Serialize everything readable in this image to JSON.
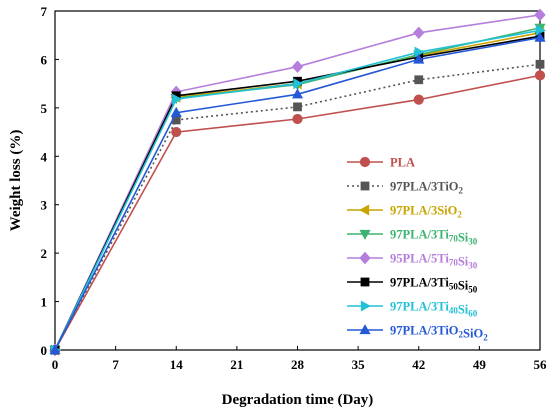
{
  "chart_data": {
    "type": "line",
    "xlabel": "Degradation time (Day)",
    "ylabel": "Weight loss (%)",
    "xlim": [
      0,
      56
    ],
    "ylim": [
      0,
      7
    ],
    "xticks": [
      0,
      7,
      14,
      21,
      28,
      35,
      42,
      49,
      56
    ],
    "yticks": [
      0,
      1,
      2,
      3,
      4,
      5,
      6,
      7
    ],
    "x": [
      0,
      14,
      28,
      42,
      56
    ],
    "legend_position": "bottom-right",
    "grid": false,
    "series": [
      {
        "name": "PLA",
        "label": [
          {
            "t": "PLA"
          }
        ],
        "color": "#c0504d",
        "marker": "circle",
        "dash": false,
        "values": [
          0,
          4.5,
          4.77,
          5.17,
          5.67
        ]
      },
      {
        "name": "97PLA/3TiO2",
        "label": [
          {
            "t": "97PLA/3TiO"
          },
          {
            "t": "2",
            "sub": true
          }
        ],
        "color": "#555555",
        "marker": "square",
        "dash": true,
        "values": [
          0,
          4.75,
          5.02,
          5.58,
          5.9
        ]
      },
      {
        "name": "97PLA/3SiO2",
        "label": [
          {
            "t": "97PLA/3SiO"
          },
          {
            "t": "2",
            "sub": true
          }
        ],
        "color": "#c8a400",
        "marker": "triangle-left",
        "dash": false,
        "values": [
          0,
          5.22,
          5.5,
          6.08,
          6.55
        ]
      },
      {
        "name": "97PLA/3Ti70Si30",
        "label": [
          {
            "t": "97PLA/3Ti"
          },
          {
            "t": "70",
            "sub": true
          },
          {
            "t": "Si"
          },
          {
            "t": "30",
            "sub": true
          }
        ],
        "color": "#3cb371",
        "marker": "triangle-down",
        "dash": false,
        "values": [
          0,
          5.2,
          5.48,
          6.1,
          6.65
        ]
      },
      {
        "name": "95PLA/5Ti70Si30",
        "label": [
          {
            "t": "95PLA/5Ti"
          },
          {
            "t": "70",
            "sub": true
          },
          {
            "t": "Si"
          },
          {
            "t": "30",
            "sub": true
          }
        ],
        "color": "#b57edc",
        "marker": "diamond",
        "dash": false,
        "values": [
          0,
          5.33,
          5.85,
          6.55,
          6.92
        ]
      },
      {
        "name": "97PLA/3Ti50Si50",
        "label": [
          {
            "t": "97PLA/3Ti"
          },
          {
            "t": "50",
            "sub": true
          },
          {
            "t": "Si"
          },
          {
            "t": "50",
            "sub": true
          }
        ],
        "color": "#000000",
        "marker": "square",
        "dash": false,
        "values": [
          0,
          5.25,
          5.55,
          6.05,
          6.48
        ]
      },
      {
        "name": "97PLA/3Ti40Si60",
        "label": [
          {
            "t": "97PLA/3Ti"
          },
          {
            "t": "40",
            "sub": true
          },
          {
            "t": "Si"
          },
          {
            "t": "60",
            "sub": true
          }
        ],
        "color": "#22c1d6",
        "marker": "triangle-right",
        "dash": false,
        "values": [
          0,
          5.18,
          5.5,
          6.15,
          6.6
        ]
      },
      {
        "name": "97PLA/3TiO2SiO2",
        "label": [
          {
            "t": "97PLA/3TiO"
          },
          {
            "t": "2",
            "sub": true
          },
          {
            "t": "SiO"
          },
          {
            "t": "2",
            "sub": true
          }
        ],
        "color": "#2458d6",
        "marker": "triangle-up",
        "dash": false,
        "values": [
          0,
          4.9,
          5.28,
          6.0,
          6.45
        ]
      }
    ]
  }
}
